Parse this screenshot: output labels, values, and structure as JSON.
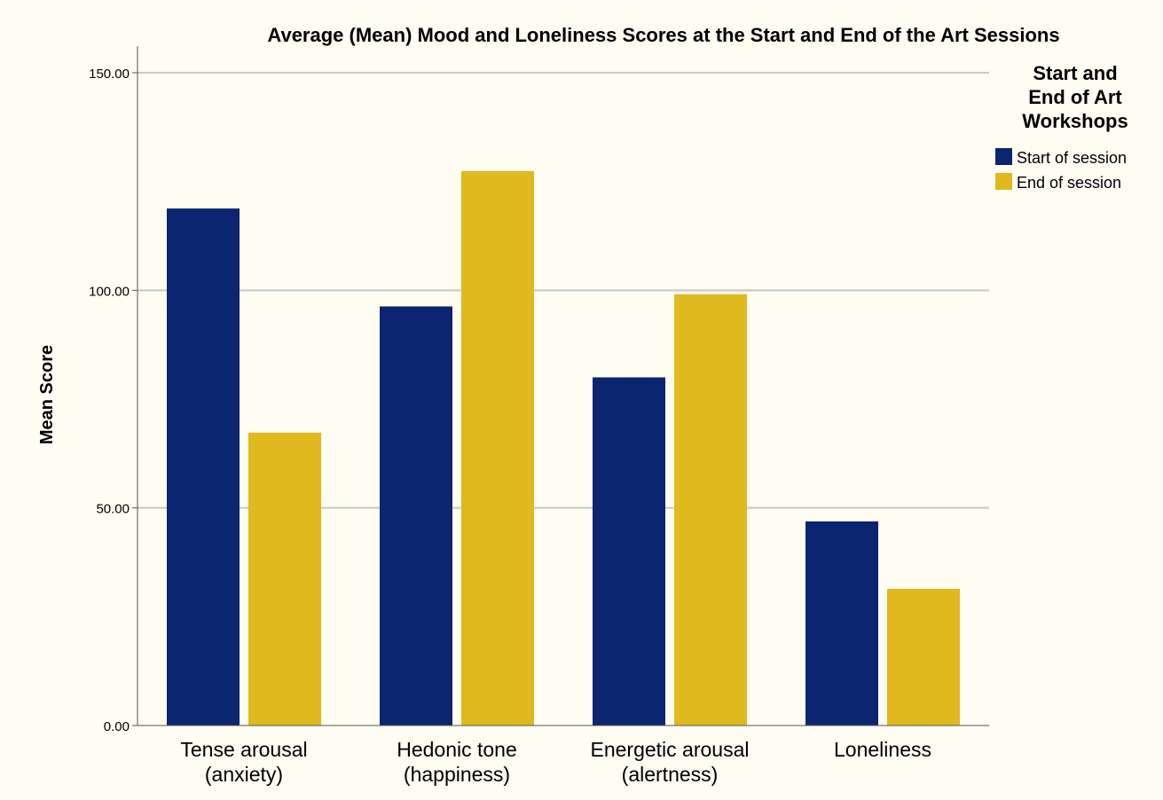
{
  "chart_data": {
    "type": "bar",
    "title": "Average (Mean) Mood and Loneliness Scores at the Start and End of the Art Sessions",
    "ylabel": "Mean Score",
    "xlabel": "",
    "ylim": [
      0,
      150
    ],
    "yticks": [
      "0.00",
      "50.00",
      "100.00",
      "150.00"
    ],
    "grid": true,
    "categories": [
      [
        "Tense arousal",
        "(anxiety)"
      ],
      [
        "Hedonic tone",
        "(happiness)"
      ],
      [
        "Energetic arousal",
        "(alertness)"
      ],
      [
        "Loneliness"
      ]
    ],
    "series": [
      {
        "name": "Start of session",
        "values": [
          118.8,
          96.3,
          80.0,
          46.9
        ],
        "color": "#0b2570"
      },
      {
        "name": "End of session",
        "values": [
          67.3,
          127.4,
          99.1,
          31.4
        ],
        "color": "#e0b91e"
      }
    ],
    "legend": {
      "title": [
        "Start and",
        "End of Art",
        "Workshops"
      ],
      "placement": "right"
    }
  }
}
